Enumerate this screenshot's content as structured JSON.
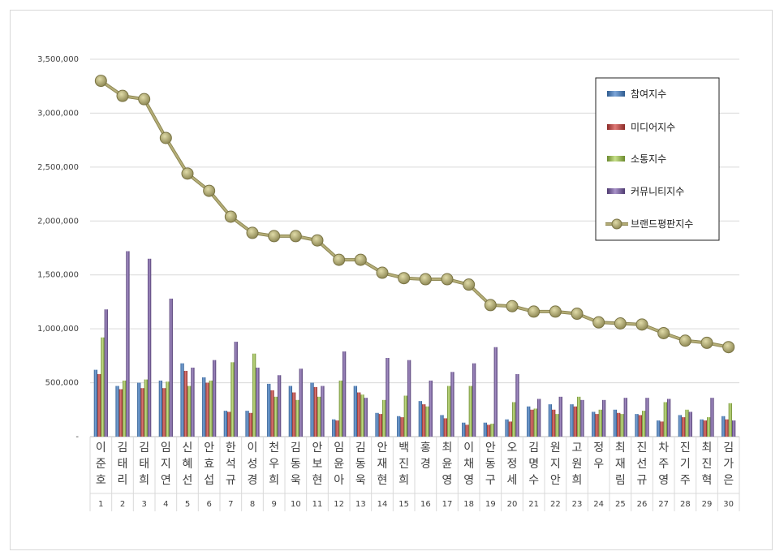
{
  "chart_data": {
    "type": "bar",
    "categories": [
      "이준호",
      "김태리",
      "김태희",
      "임지연",
      "신혜선",
      "안효섭",
      "한석규",
      "이성경",
      "천우희",
      "김동욱",
      "안보현",
      "임윤아",
      "김동욱",
      "안재현",
      "백진희",
      "홍경",
      "최윤영",
      "이채영",
      "안동구",
      "오정세",
      "김명수",
      "원지안",
      "고원희",
      "정우",
      "최재림",
      "진선규",
      "차주영",
      "진기주",
      "최진혁",
      "김가은"
    ],
    "ranks": [
      "1",
      "2",
      "3",
      "4",
      "5",
      "6",
      "7",
      "8",
      "9",
      "10",
      "11",
      "12",
      "13",
      "14",
      "15",
      "16",
      "17",
      "18",
      "19",
      "20",
      "21",
      "22",
      "23",
      "24",
      "25",
      "26",
      "27",
      "28",
      "29",
      "30"
    ],
    "ylim": [
      0,
      3500000
    ],
    "yticks": [
      "-",
      "500,000",
      "1,000,000",
      "1,500,000",
      "2,000,000",
      "2,500,000",
      "3,000,000",
      "3,500,000"
    ],
    "grid": true,
    "legend_position": "top-right",
    "series": [
      {
        "name": "참여지수",
        "kind": "bar",
        "color": "#4f81bd",
        "values": [
          620000,
          470000,
          500000,
          520000,
          680000,
          550000,
          240000,
          240000,
          490000,
          470000,
          500000,
          160000,
          470000,
          220000,
          190000,
          330000,
          200000,
          130000,
          130000,
          160000,
          280000,
          300000,
          300000,
          230000,
          250000,
          210000,
          150000,
          200000,
          160000,
          190000
        ]
      },
      {
        "name": "미디어지수",
        "kind": "bar",
        "color": "#c0504d",
        "values": [
          580000,
          440000,
          450000,
          450000,
          610000,
          500000,
          230000,
          220000,
          430000,
          410000,
          460000,
          150000,
          410000,
          210000,
          180000,
          300000,
          170000,
          110000,
          110000,
          140000,
          250000,
          250000,
          280000,
          210000,
          220000,
          200000,
          140000,
          180000,
          150000,
          160000
        ]
      },
      {
        "name": "소통지수",
        "kind": "bar",
        "color": "#9bbb59",
        "values": [
          920000,
          520000,
          530000,
          510000,
          470000,
          520000,
          690000,
          770000,
          370000,
          340000,
          370000,
          520000,
          390000,
          340000,
          380000,
          280000,
          470000,
          470000,
          120000,
          320000,
          260000,
          210000,
          370000,
          250000,
          210000,
          240000,
          320000,
          250000,
          180000,
          310000
        ]
      },
      {
        "name": "커뮤니티지수",
        "kind": "bar",
        "color": "#8064a2",
        "values": [
          1180000,
          1720000,
          1650000,
          1280000,
          640000,
          710000,
          880000,
          640000,
          570000,
          630000,
          470000,
          790000,
          360000,
          730000,
          710000,
          520000,
          600000,
          680000,
          830000,
          580000,
          350000,
          370000,
          340000,
          340000,
          360000,
          360000,
          350000,
          230000,
          360000,
          150000
        ]
      },
      {
        "name": "브랜드평판지수",
        "kind": "line",
        "color": "#a59f6b",
        "values": [
          3300000,
          3160000,
          3130000,
          2770000,
          2440000,
          2280000,
          2040000,
          1890000,
          1860000,
          1860000,
          1820000,
          1640000,
          1640000,
          1520000,
          1470000,
          1460000,
          1460000,
          1410000,
          1220000,
          1210000,
          1160000,
          1160000,
          1140000,
          1060000,
          1050000,
          1040000,
          960000,
          890000,
          870000,
          830000
        ]
      }
    ]
  }
}
